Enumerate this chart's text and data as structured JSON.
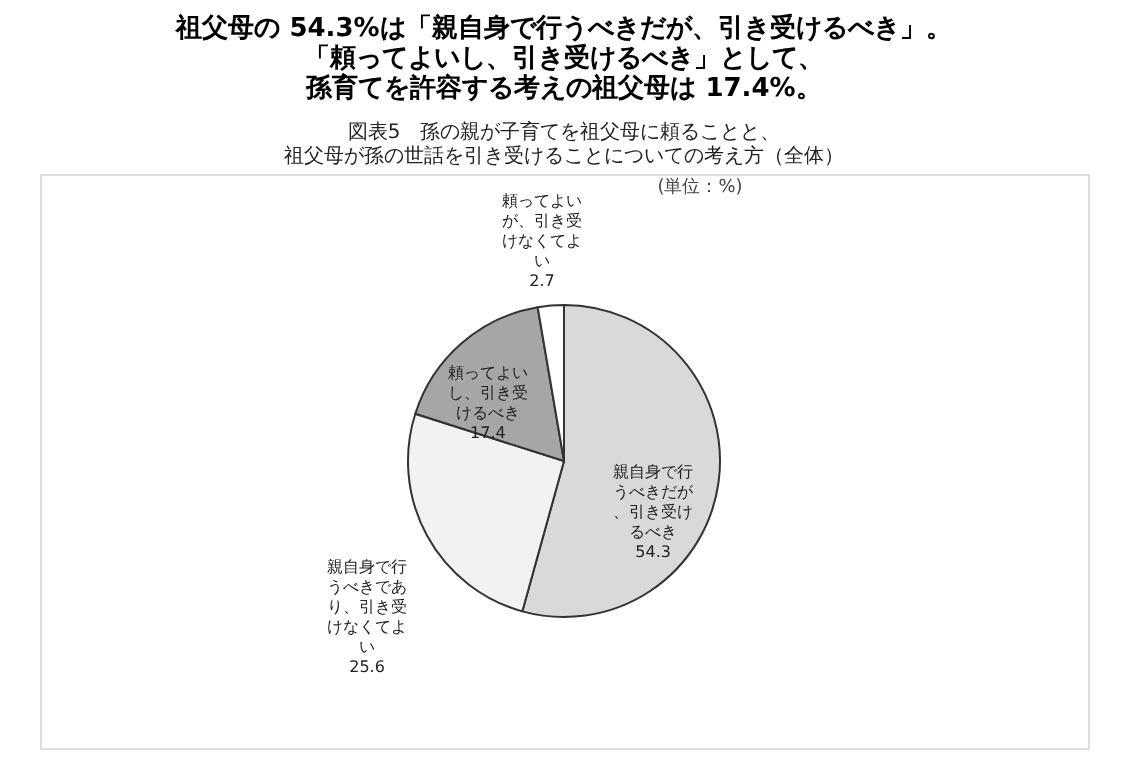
{
  "chart_data": {
    "type": "pie",
    "title": "祖父母の 54.3%は「親自身で行うべきだが、引き受けるべき」。「頼ってよいし、引き受けるべき」として、孫育てを許容する考えの祖父母は 17.4%。",
    "subtitle": "図表5　孫の親が子育てを祖父母に頼ることと、祖父母が孫の世話を引き受けることについての考え方（全体）",
    "categories": [
      "親自身で行うべきだが、引き受けるべき",
      "親自身で行うべきであり、引き受けなくてよい",
      "頼ってよいし、引き受けるべき",
      "頼ってよいが、引き受けなくてよい"
    ],
    "values": [
      54.3,
      25.6,
      17.4,
      2.7
    ],
    "colors": [
      "#d9d9d9",
      "#f2f2f2",
      "#a6a6a6",
      "#ffffff"
    ],
    "data_labels": true,
    "legend": false,
    "annotations": [
      "(単位：%)"
    ]
  }
}
